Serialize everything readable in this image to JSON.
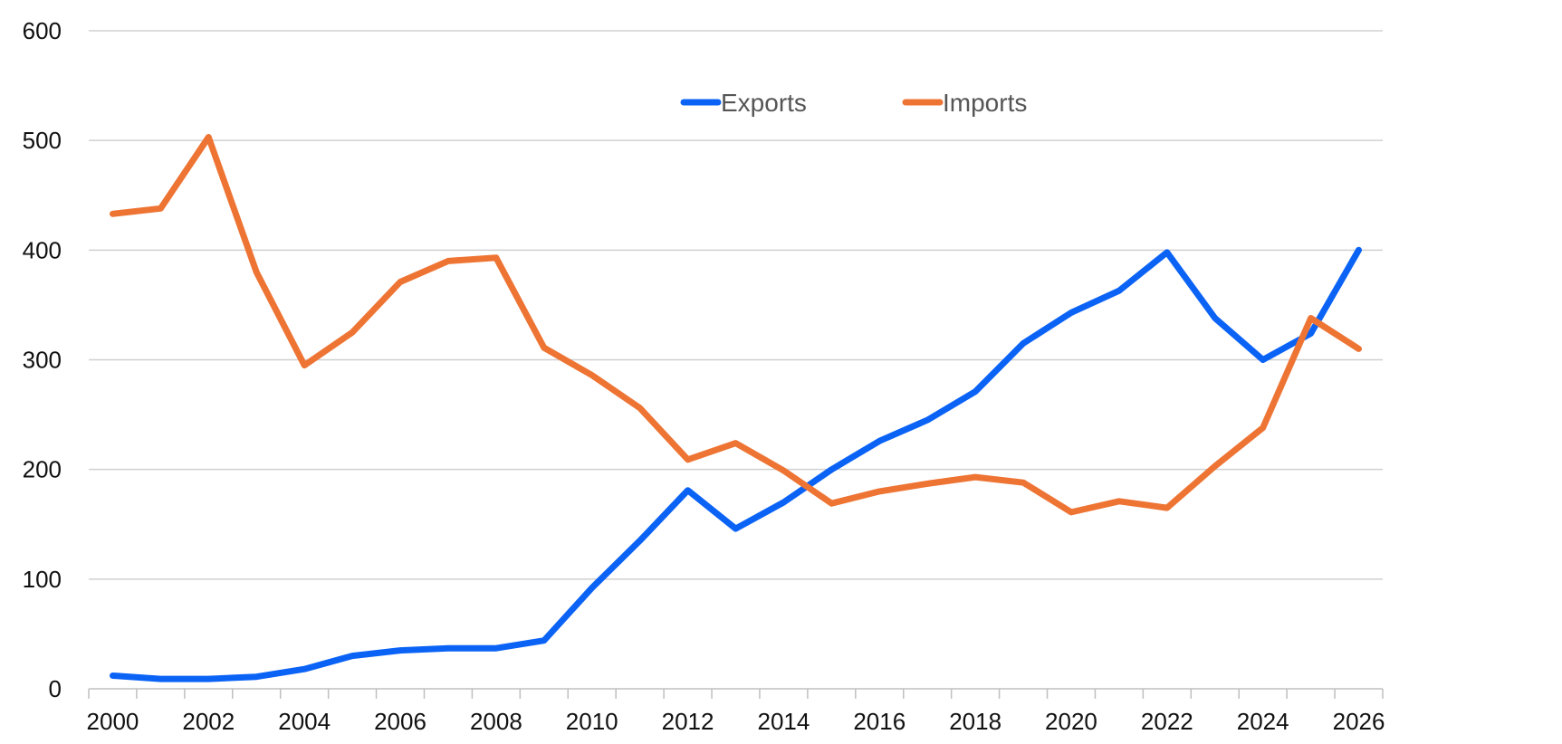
{
  "chart_data": {
    "type": "line",
    "x": [
      2000,
      2001,
      2002,
      2003,
      2004,
      2005,
      2006,
      2007,
      2008,
      2009,
      2010,
      2011,
      2012,
      2013,
      2014,
      2015,
      2016,
      2017,
      2018,
      2019,
      2020,
      2021,
      2022,
      2023,
      2024,
      2025,
      2026
    ],
    "series": [
      {
        "name": "Exports",
        "color": "#0b63f6",
        "values": [
          12,
          9,
          9,
          11,
          18,
          30,
          35,
          37,
          37,
          44,
          92,
          135,
          181,
          146,
          170,
          200,
          226,
          245,
          271,
          315,
          343,
          363,
          398,
          338,
          300,
          324,
          400
        ]
      },
      {
        "name": "Imports",
        "color": "#ee7434",
        "values": [
          433,
          438,
          503,
          380,
          295,
          325,
          371,
          390,
          393,
          311,
          286,
          256,
          209,
          224,
          199,
          169,
          180,
          187,
          193,
          188,
          161,
          171,
          165,
          203,
          238,
          338,
          310
        ]
      }
    ],
    "x_ticks": [
      "2000",
      "2002",
      "2004",
      "2006",
      "2008",
      "2010",
      "2012",
      "2014",
      "2016",
      "2018",
      "2020",
      "2022",
      "2024",
      "2026"
    ],
    "y_ticks": [
      "0",
      "100",
      "200",
      "300",
      "400",
      "500",
      "600"
    ],
    "ylim": [
      0,
      600
    ],
    "xlim": [
      1999.5,
      2026.5
    ],
    "grid": true,
    "legend_position": "top-center",
    "title": "",
    "xlabel": "",
    "ylabel": ""
  }
}
